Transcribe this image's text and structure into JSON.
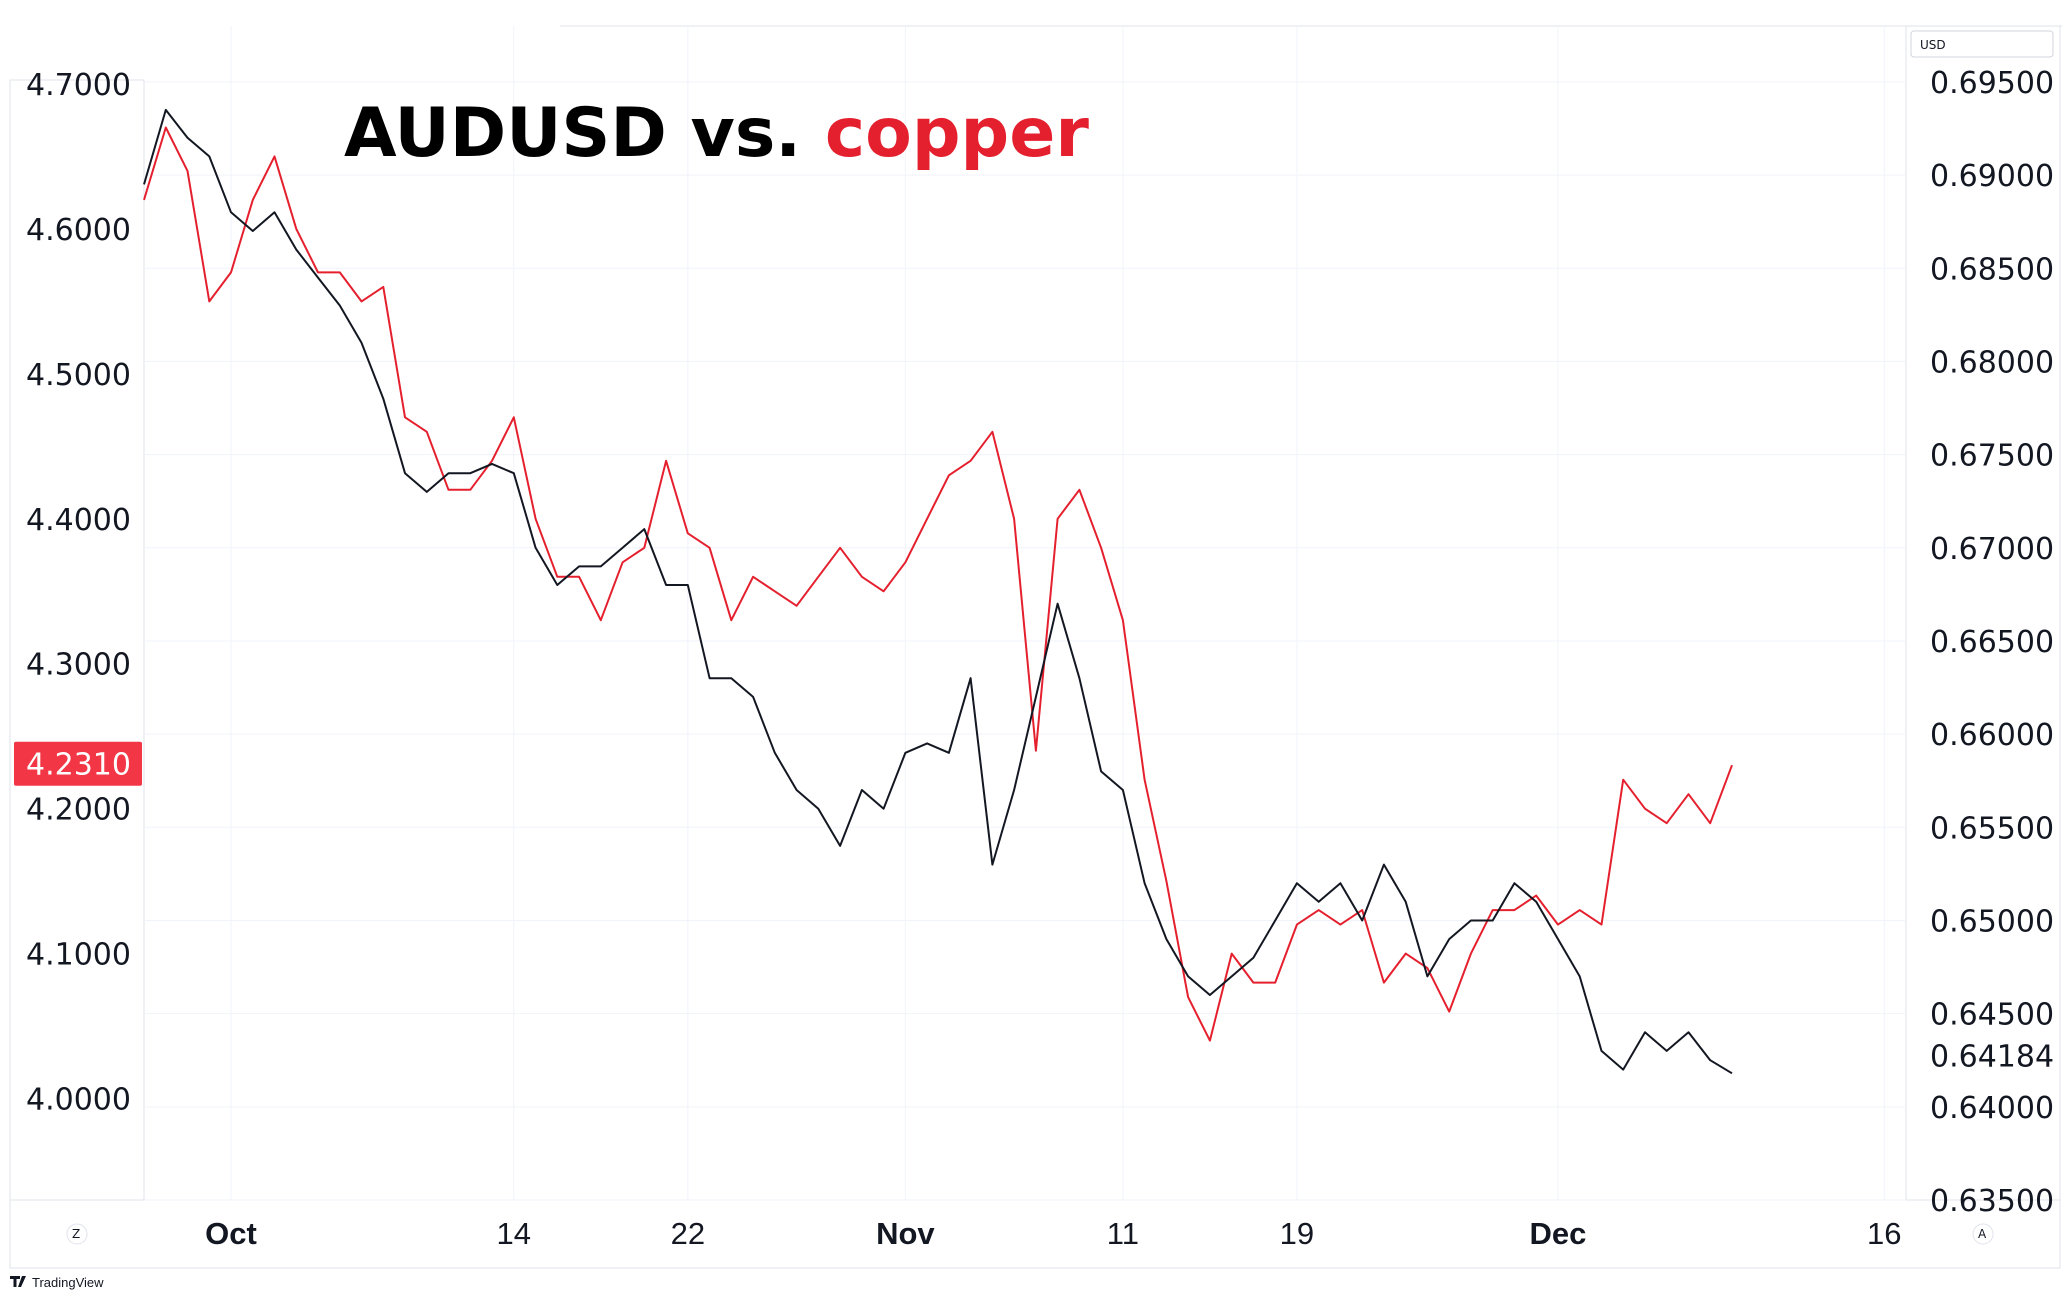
{
  "chart_data": {
    "type": "line",
    "title_parts": [
      {
        "text": "AUDUSD vs. ",
        "color": "#000000"
      },
      {
        "text": "copper",
        "color": "#e5202e"
      }
    ],
    "currency_label": "USD",
    "left_axis": {
      "ticks": [
        "4.7000",
        "4.6000",
        "4.5000",
        "4.4000",
        "4.3000",
        "4.2000",
        "4.1000",
        "4.0000"
      ],
      "range": [
        3.93,
        4.74
      ],
      "last_value_label": "4.2310",
      "last_value_color": "#f23645"
    },
    "right_axis": {
      "ticks": [
        "0.69500",
        "0.69000",
        "0.68500",
        "0.68000",
        "0.67500",
        "0.67000",
        "0.66500",
        "0.66000",
        "0.65500",
        "0.65000",
        "0.64500",
        "0.64000",
        "0.63500"
      ],
      "range": [
        0.635,
        0.698
      ],
      "last_value_label": "0.64184"
    },
    "x_ticks": [
      {
        "label": "Oct",
        "date": "2024-10-01",
        "bold": true
      },
      {
        "label": "14",
        "date": "2024-10-14",
        "bold": false
      },
      {
        "label": "22",
        "date": "2024-10-22",
        "bold": false
      },
      {
        "label": "Nov",
        "date": "2024-11-01",
        "bold": true
      },
      {
        "label": "11",
        "date": "2024-11-11",
        "bold": false
      },
      {
        "label": "19",
        "date": "2024-11-19",
        "bold": false
      },
      {
        "label": "Dec",
        "date": "2024-12-01",
        "bold": true
      },
      {
        "label": "16",
        "date": "2024-12-16",
        "bold": false
      }
    ],
    "x_range": [
      "2024-09-27",
      "2024-12-17"
    ],
    "grid": true,
    "series": [
      {
        "name": "copper",
        "axis": "left",
        "color": "#e5202e",
        "points": [
          [
            "2024-09-27",
            4.62
          ],
          [
            "2024-09-28",
            4.67
          ],
          [
            "2024-09-29",
            4.64
          ],
          [
            "2024-09-30",
            4.55
          ],
          [
            "2024-10-01",
            4.57
          ],
          [
            "2024-10-02",
            4.62
          ],
          [
            "2024-10-03",
            4.65
          ],
          [
            "2024-10-04",
            4.6
          ],
          [
            "2024-10-05",
            4.57
          ],
          [
            "2024-10-06",
            4.57
          ],
          [
            "2024-10-07",
            4.55
          ],
          [
            "2024-10-08",
            4.56
          ],
          [
            "2024-10-09",
            4.47
          ],
          [
            "2024-10-10",
            4.46
          ],
          [
            "2024-10-11",
            4.42
          ],
          [
            "2024-10-12",
            4.42
          ],
          [
            "2024-10-13",
            4.44
          ],
          [
            "2024-10-14",
            4.47
          ],
          [
            "2024-10-15",
            4.4
          ],
          [
            "2024-10-16",
            4.36
          ],
          [
            "2024-10-17",
            4.36
          ],
          [
            "2024-10-18",
            4.33
          ],
          [
            "2024-10-19",
            4.37
          ],
          [
            "2024-10-20",
            4.38
          ],
          [
            "2024-10-21",
            4.44
          ],
          [
            "2024-10-22",
            4.39
          ],
          [
            "2024-10-23",
            4.38
          ],
          [
            "2024-10-24",
            4.33
          ],
          [
            "2024-10-25",
            4.36
          ],
          [
            "2024-10-26",
            4.35
          ],
          [
            "2024-10-27",
            4.34
          ],
          [
            "2024-10-28",
            4.36
          ],
          [
            "2024-10-29",
            4.38
          ],
          [
            "2024-10-30",
            4.36
          ],
          [
            "2024-10-31",
            4.35
          ],
          [
            "2024-11-01",
            4.37
          ],
          [
            "2024-11-02",
            4.4
          ],
          [
            "2024-11-03",
            4.43
          ],
          [
            "2024-11-04",
            4.44
          ],
          [
            "2024-11-05",
            4.46
          ],
          [
            "2024-11-06",
            4.4
          ],
          [
            "2024-11-07",
            4.24
          ],
          [
            "2024-11-08",
            4.4
          ],
          [
            "2024-11-09",
            4.42
          ],
          [
            "2024-11-10",
            4.38
          ],
          [
            "2024-11-11",
            4.33
          ],
          [
            "2024-11-12",
            4.22
          ],
          [
            "2024-11-13",
            4.15
          ],
          [
            "2024-11-14",
            4.07
          ],
          [
            "2024-11-15",
            4.04
          ],
          [
            "2024-11-16",
            4.1
          ],
          [
            "2024-11-17",
            4.08
          ],
          [
            "2024-11-18",
            4.08
          ],
          [
            "2024-11-19",
            4.12
          ],
          [
            "2024-11-20",
            4.13
          ],
          [
            "2024-11-21",
            4.12
          ],
          [
            "2024-11-22",
            4.13
          ],
          [
            "2024-11-23",
            4.08
          ],
          [
            "2024-11-24",
            4.1
          ],
          [
            "2024-11-25",
            4.09
          ],
          [
            "2024-11-26",
            4.06
          ],
          [
            "2024-11-27",
            4.1
          ],
          [
            "2024-11-28",
            4.13
          ],
          [
            "2024-11-29",
            4.13
          ],
          [
            "2024-11-30",
            4.14
          ],
          [
            "2024-12-01",
            4.12
          ],
          [
            "2024-12-02",
            4.13
          ],
          [
            "2024-12-03",
            4.12
          ],
          [
            "2024-12-04",
            4.22
          ],
          [
            "2024-12-05",
            4.2
          ],
          [
            "2024-12-06",
            4.19
          ],
          [
            "2024-12-07",
            4.21
          ],
          [
            "2024-12-08",
            4.19
          ],
          [
            "2024-12-09",
            4.23
          ]
        ]
      },
      {
        "name": "AUDUSD",
        "axis": "right",
        "color": "#131722",
        "points": [
          [
            "2024-09-27",
            0.6895
          ],
          [
            "2024-09-28",
            0.6935
          ],
          [
            "2024-09-29",
            0.692
          ],
          [
            "2024-09-30",
            0.691
          ],
          [
            "2024-10-01",
            0.688
          ],
          [
            "2024-10-02",
            0.687
          ],
          [
            "2024-10-03",
            0.688
          ],
          [
            "2024-10-04",
            0.686
          ],
          [
            "2024-10-05",
            0.6845
          ],
          [
            "2024-10-06",
            0.683
          ],
          [
            "2024-10-07",
            0.681
          ],
          [
            "2024-10-08",
            0.678
          ],
          [
            "2024-10-09",
            0.674
          ],
          [
            "2024-10-10",
            0.673
          ],
          [
            "2024-10-11",
            0.674
          ],
          [
            "2024-10-12",
            0.674
          ],
          [
            "2024-10-13",
            0.6745
          ],
          [
            "2024-10-14",
            0.674
          ],
          [
            "2024-10-15",
            0.67
          ],
          [
            "2024-10-16",
            0.668
          ],
          [
            "2024-10-17",
            0.669
          ],
          [
            "2024-10-18",
            0.669
          ],
          [
            "2024-10-19",
            0.67
          ],
          [
            "2024-10-20",
            0.671
          ],
          [
            "2024-10-21",
            0.668
          ],
          [
            "2024-10-22",
            0.668
          ],
          [
            "2024-10-23",
            0.663
          ],
          [
            "2024-10-24",
            0.663
          ],
          [
            "2024-10-25",
            0.662
          ],
          [
            "2024-10-26",
            0.659
          ],
          [
            "2024-10-27",
            0.657
          ],
          [
            "2024-10-28",
            0.656
          ],
          [
            "2024-10-29",
            0.654
          ],
          [
            "2024-10-30",
            0.657
          ],
          [
            "2024-10-31",
            0.656
          ],
          [
            "2024-11-01",
            0.659
          ],
          [
            "2024-11-02",
            0.6595
          ],
          [
            "2024-11-03",
            0.659
          ],
          [
            "2024-11-04",
            0.663
          ],
          [
            "2024-11-05",
            0.653
          ],
          [
            "2024-11-06",
            0.657
          ],
          [
            "2024-11-07",
            0.662
          ],
          [
            "2024-11-08",
            0.667
          ],
          [
            "2024-11-09",
            0.663
          ],
          [
            "2024-11-10",
            0.658
          ],
          [
            "2024-11-11",
            0.657
          ],
          [
            "2024-11-12",
            0.652
          ],
          [
            "2024-11-13",
            0.649
          ],
          [
            "2024-11-14",
            0.647
          ],
          [
            "2024-11-15",
            0.646
          ],
          [
            "2024-11-16",
            0.647
          ],
          [
            "2024-11-17",
            0.648
          ],
          [
            "2024-11-18",
            0.65
          ],
          [
            "2024-11-19",
            0.652
          ],
          [
            "2024-11-20",
            0.651
          ],
          [
            "2024-11-21",
            0.652
          ],
          [
            "2024-11-22",
            0.65
          ],
          [
            "2024-11-23",
            0.653
          ],
          [
            "2024-11-24",
            0.651
          ],
          [
            "2024-11-25",
            0.647
          ],
          [
            "2024-11-26",
            0.649
          ],
          [
            "2024-11-27",
            0.65
          ],
          [
            "2024-11-28",
            0.65
          ],
          [
            "2024-11-29",
            0.652
          ],
          [
            "2024-11-30",
            0.651
          ],
          [
            "2024-12-01",
            0.649
          ],
          [
            "2024-12-02",
            0.647
          ],
          [
            "2024-12-03",
            0.643
          ],
          [
            "2024-12-04",
            0.642
          ],
          [
            "2024-12-05",
            0.644
          ],
          [
            "2024-12-06",
            0.643
          ],
          [
            "2024-12-07",
            0.644
          ],
          [
            "2024-12-08",
            0.6425
          ],
          [
            "2024-12-09",
            0.6418
          ]
        ]
      }
    ]
  },
  "footer": {
    "brand": "TradingView",
    "left_corner_button": "Z",
    "right_corner_button": "A"
  }
}
